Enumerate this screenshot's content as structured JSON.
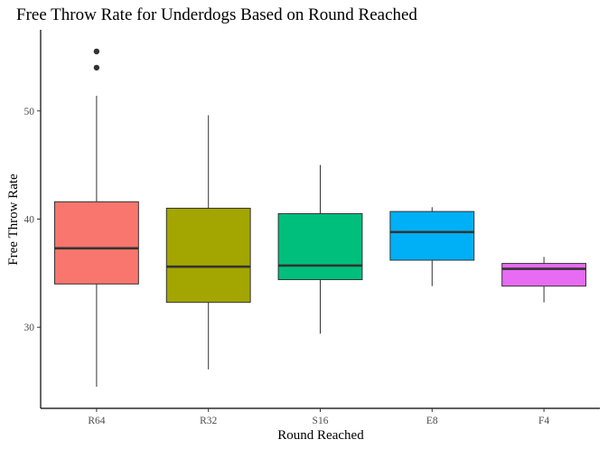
{
  "chart_data": {
    "type": "box",
    "title": "Free Throw Rate for Underdogs Based on Round Reached",
    "xlabel": "Round Reached",
    "ylabel": "Free Throw Rate",
    "ylim": [
      22.5,
      57.5
    ],
    "yticks": [
      30,
      40,
      50
    ],
    "grid": false,
    "legend": "none",
    "categories": [
      "R64",
      "R32",
      "S16",
      "E8",
      "F4"
    ],
    "colors": [
      "#F8766D",
      "#A3A500",
      "#00BF7D",
      "#00B0F6",
      "#E76BF3"
    ],
    "boxes": [
      {
        "category": "R64",
        "whisker_low": 24.5,
        "q1": 34.0,
        "median": 37.3,
        "q3": 41.6,
        "whisker_high": 51.4,
        "outliers": [
          54.0,
          55.5
        ]
      },
      {
        "category": "R32",
        "whisker_low": 26.1,
        "q1": 32.3,
        "median": 35.6,
        "q3": 41.0,
        "whisker_high": 49.6,
        "outliers": []
      },
      {
        "category": "S16",
        "whisker_low": 29.4,
        "q1": 34.4,
        "median": 35.7,
        "q3": 40.5,
        "whisker_high": 45.0,
        "outliers": []
      },
      {
        "category": "E8",
        "whisker_low": 33.8,
        "q1": 36.2,
        "median": 38.8,
        "q3": 40.7,
        "whisker_high": 41.1,
        "outliers": []
      },
      {
        "category": "F4",
        "whisker_low": 32.3,
        "q1": 33.8,
        "median": 35.4,
        "q3": 35.9,
        "whisker_high": 36.5,
        "outliers": []
      }
    ]
  }
}
